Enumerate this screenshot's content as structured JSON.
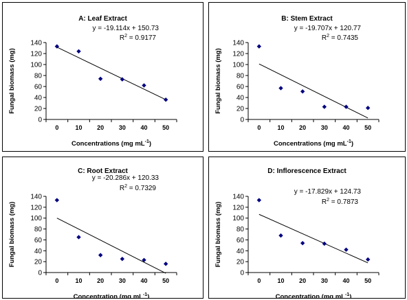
{
  "chart_data": [
    {
      "type": "scatter",
      "title": "A: Leaf Extract",
      "xlabel": "Concentrations (mg mL",
      "xlabel_sup": "-1",
      "xlabel_end": ")",
      "ylabel": "Fungal biomass (mg)",
      "x": [
        0,
        10,
        20,
        30,
        40,
        50
      ],
      "y": [
        133,
        124,
        74,
        73,
        62,
        36
      ],
      "xticks": [
        0,
        10,
        20,
        30,
        40,
        50
      ],
      "yticks": [
        0,
        20,
        40,
        60,
        80,
        100,
        120,
        140
      ],
      "ylim": [
        0,
        140
      ],
      "trendline": {
        "slope": -19.114,
        "intercept": 150.73
      },
      "equation": "y = -19.114x + 150.73",
      "r2_label": "R",
      "r2_sup": "2",
      "r2_value": " = 0.9177",
      "grid": false,
      "legend": "none"
    },
    {
      "type": "scatter",
      "title": "B: Stem Extract",
      "xlabel": "Concentrations (mg mL",
      "xlabel_sup": "-1",
      "xlabel_end": ")",
      "ylabel": "Fungal biomass (mg)",
      "x": [
        0,
        10,
        20,
        30,
        40,
        50
      ],
      "y": [
        133,
        57,
        51,
        23,
        23,
        21
      ],
      "xticks": [
        0,
        10,
        20,
        30,
        40,
        50
      ],
      "yticks": [
        0,
        20,
        40,
        60,
        80,
        100,
        120,
        140
      ],
      "ylim": [
        0,
        140
      ],
      "trendline": {
        "slope": -19.707,
        "intercept": 120.77
      },
      "equation": "y = -19.707x + 120.77",
      "r2_label": "R",
      "r2_sup": "2",
      "r2_value": " = 0.7435",
      "grid": false,
      "legend": "none"
    },
    {
      "type": "scatter",
      "title": "C: Root Extract",
      "xlabel": "Concentration (mg mL",
      "xlabel_sup": "-1",
      "xlabel_end": ")",
      "ylabel": "Fungal biomass (mg)",
      "x": [
        0,
        10,
        20,
        30,
        40,
        50
      ],
      "y": [
        133,
        65,
        32,
        25,
        23,
        16
      ],
      "xticks": [
        0,
        10,
        20,
        30,
        40,
        50
      ],
      "yticks": [
        0,
        20,
        40,
        60,
        80,
        100,
        120,
        140
      ],
      "ylim": [
        0,
        140
      ],
      "trendline": {
        "slope": -20.286,
        "intercept": 120.33
      },
      "equation": "y = -20.286x + 120.33",
      "r2_label": "R",
      "r2_sup": "2",
      "r2_value": " = 0.7329",
      "grid": false,
      "legend": "none"
    },
    {
      "type": "scatter",
      "title": "D: Inflorescence Extract",
      "xlabel": "Concentration (mg mL",
      "xlabel_sup": "-1",
      "xlabel_end": ")",
      "ylabel": "Fungal biomass (mg)",
      "x": [
        0,
        10,
        20,
        30,
        40,
        50
      ],
      "y": [
        133,
        68,
        54,
        53,
        42,
        24
      ],
      "xticks": [
        0,
        10,
        20,
        30,
        40,
        50
      ],
      "yticks": [
        0,
        20,
        40,
        60,
        80,
        100,
        120,
        140
      ],
      "ylim": [
        0,
        140
      ],
      "trendline": {
        "slope": -17.829,
        "intercept": 124.73
      },
      "equation": "y = -17.829x + 124.73",
      "r2_label": "R",
      "r2_sup": "2",
      "r2_value": " = 0.7873",
      "grid": false,
      "legend": "none"
    }
  ],
  "colors": {
    "marker": "#000080",
    "line": "#000000",
    "axis": "#000000"
  }
}
